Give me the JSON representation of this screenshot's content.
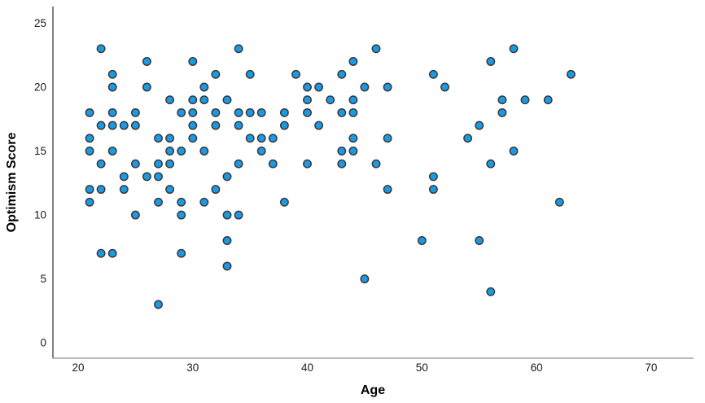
{
  "chart_data": {
    "type": "scatter",
    "title": "",
    "xlabel": "Age",
    "ylabel": "Optimism Score",
    "x_ticks": [
      20,
      30,
      40,
      50,
      60,
      70
    ],
    "y_ticks": [
      0,
      5,
      10,
      15,
      20,
      25
    ],
    "xlim": [
      17.8,
      73.7
    ],
    "ylim": [
      -1.2,
      26.3
    ],
    "grid": false,
    "legend_position": "none",
    "marker_fill": "#1b9ae4",
    "marker_stroke": "#38383c",
    "y_axis_color": "#3f3f3f",
    "x_axis_color": "#8f8f8f",
    "tick_label_color": "#1a1a1a",
    "points": [
      [
        21,
        18
      ],
      [
        21,
        16
      ],
      [
        21,
        15
      ],
      [
        21,
        12
      ],
      [
        21,
        11
      ],
      [
        22,
        23
      ],
      [
        22,
        17
      ],
      [
        22,
        14
      ],
      [
        22,
        12
      ],
      [
        22,
        7
      ],
      [
        23,
        21
      ],
      [
        23,
        20
      ],
      [
        23,
        18
      ],
      [
        23,
        17
      ],
      [
        23,
        15
      ],
      [
        23,
        7
      ],
      [
        24,
        17
      ],
      [
        24,
        13
      ],
      [
        24,
        12
      ],
      [
        25,
        18
      ],
      [
        25,
        17
      ],
      [
        25,
        14
      ],
      [
        25,
        10
      ],
      [
        26,
        22
      ],
      [
        26,
        20
      ],
      [
        26,
        13
      ],
      [
        27,
        16
      ],
      [
        27,
        14
      ],
      [
        27,
        13
      ],
      [
        27,
        11
      ],
      [
        27,
        3
      ],
      [
        28,
        19
      ],
      [
        28,
        16
      ],
      [
        28,
        15
      ],
      [
        28,
        14
      ],
      [
        28,
        12
      ],
      [
        29,
        18
      ],
      [
        29,
        15
      ],
      [
        29,
        11
      ],
      [
        29,
        10
      ],
      [
        29,
        7
      ],
      [
        30,
        22
      ],
      [
        30,
        19
      ],
      [
        30,
        18
      ],
      [
        30,
        17
      ],
      [
        30,
        16
      ],
      [
        31,
        20
      ],
      [
        31,
        19
      ],
      [
        31,
        15
      ],
      [
        31,
        11
      ],
      [
        32,
        21
      ],
      [
        32,
        18
      ],
      [
        32,
        17
      ],
      [
        32,
        12
      ],
      [
        33,
        19
      ],
      [
        33,
        13
      ],
      [
        33,
        10
      ],
      [
        33,
        8
      ],
      [
        33,
        6
      ],
      [
        34,
        23
      ],
      [
        34,
        18
      ],
      [
        34,
        17
      ],
      [
        34,
        14
      ],
      [
        34,
        10
      ],
      [
        35,
        21
      ],
      [
        35,
        18
      ],
      [
        35,
        16
      ],
      [
        36,
        18
      ],
      [
        36,
        16
      ],
      [
        36,
        15
      ],
      [
        37,
        16
      ],
      [
        37,
        14
      ],
      [
        38,
        18
      ],
      [
        38,
        17
      ],
      [
        38,
        11
      ],
      [
        39,
        21
      ],
      [
        40,
        20
      ],
      [
        40,
        19
      ],
      [
        40,
        18
      ],
      [
        40,
        14
      ],
      [
        41,
        20
      ],
      [
        41,
        17
      ],
      [
        42,
        19
      ],
      [
        43,
        21
      ],
      [
        43,
        18
      ],
      [
        43,
        15
      ],
      [
        43,
        14
      ],
      [
        44,
        22
      ],
      [
        44,
        19
      ],
      [
        44,
        18
      ],
      [
        44,
        16
      ],
      [
        44,
        15
      ],
      [
        45,
        20
      ],
      [
        45,
        5
      ],
      [
        46,
        23
      ],
      [
        46,
        14
      ],
      [
        47,
        20
      ],
      [
        47,
        16
      ],
      [
        47,
        12
      ],
      [
        50,
        8
      ],
      [
        51,
        21
      ],
      [
        51,
        13
      ],
      [
        51,
        12
      ],
      [
        52,
        20
      ],
      [
        54,
        16
      ],
      [
        55,
        17
      ],
      [
        55,
        8
      ],
      [
        56,
        22
      ],
      [
        56,
        14
      ],
      [
        56,
        4
      ],
      [
        57,
        19
      ],
      [
        57,
        18
      ],
      [
        58,
        23
      ],
      [
        58,
        15
      ],
      [
        59,
        19
      ],
      [
        61,
        19
      ],
      [
        62,
        11
      ],
      [
        63,
        21
      ]
    ]
  }
}
